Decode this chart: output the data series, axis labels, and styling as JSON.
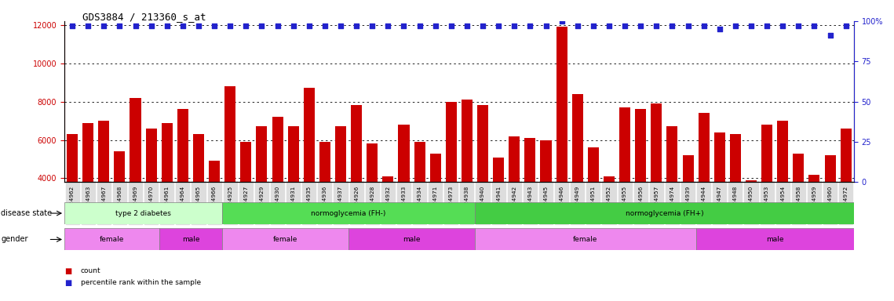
{
  "title": "GDS3884 / 213360_s_at",
  "samples": [
    "GSM624962",
    "GSM624963",
    "GSM624967",
    "GSM624968",
    "GSM624969",
    "GSM624970",
    "GSM624961",
    "GSM624964",
    "GSM624965",
    "GSM624966",
    "GSM624925",
    "GSM624927",
    "GSM624929",
    "GSM624930",
    "GSM624931",
    "GSM624935",
    "GSM624936",
    "GSM624937",
    "GSM624926",
    "GSM624928",
    "GSM624932",
    "GSM624933",
    "GSM624934",
    "GSM624971",
    "GSM624973",
    "GSM624938",
    "GSM624940",
    "GSM624941",
    "GSM624942",
    "GSM624943",
    "GSM624945",
    "GSM624946",
    "GSM624949",
    "GSM624951",
    "GSM624952",
    "GSM624955",
    "GSM624956",
    "GSM624957",
    "GSM624974",
    "GSM624939",
    "GSM624944",
    "GSM624947",
    "GSM624948",
    "GSM624950",
    "GSM624953",
    "GSM624954",
    "GSM624958",
    "GSM624959",
    "GSM624960",
    "GSM624972"
  ],
  "counts": [
    6300,
    6900,
    7000,
    5400,
    8200,
    6600,
    6900,
    7600,
    6300,
    4900,
    8800,
    5900,
    6700,
    7200,
    6700,
    8700,
    5900,
    6700,
    7800,
    5800,
    4100,
    6800,
    5900,
    5300,
    8000,
    8100,
    7800,
    5100,
    6200,
    6100,
    6000,
    11900,
    8400,
    5600,
    4100,
    7700,
    7600,
    7900,
    6700,
    5200,
    7400,
    6400,
    6300,
    3900,
    6800,
    7000,
    5300,
    4200,
    5200,
    6600
  ],
  "percentile_ranks": [
    97,
    97,
    97,
    97,
    97,
    97,
    97,
    97,
    97,
    97,
    97,
    97,
    97,
    97,
    97,
    97,
    97,
    97,
    97,
    97,
    97,
    97,
    97,
    97,
    97,
    97,
    97,
    97,
    97,
    97,
    97,
    100,
    97,
    97,
    97,
    97,
    97,
    97,
    97,
    97,
    97,
    95,
    97,
    97,
    97,
    97,
    97,
    97,
    91,
    97
  ],
  "bar_color": "#cc0000",
  "dot_color": "#2222cc",
  "ylim_left": [
    3800,
    12200
  ],
  "yticks_left": [
    4000,
    6000,
    8000,
    10000,
    12000
  ],
  "ylim_right": [
    0,
    100
  ],
  "yticks_right": [
    0,
    25,
    50,
    75,
    100
  ],
  "disease_state_groups": [
    {
      "label": "type 2 diabetes",
      "start": 0,
      "end": 10,
      "color": "#ccffcc"
    },
    {
      "label": "normoglycemia (FH-)",
      "start": 10,
      "end": 26,
      "color": "#55dd55"
    },
    {
      "label": "normoglycemia (FH+)",
      "start": 26,
      "end": 50,
      "color": "#44cc44"
    }
  ],
  "gender_groups": [
    {
      "label": "female",
      "start": 0,
      "end": 6,
      "color": "#ee88ee"
    },
    {
      "label": "male",
      "start": 6,
      "end": 10,
      "color": "#dd44dd"
    },
    {
      "label": "female",
      "start": 10,
      "end": 18,
      "color": "#ee88ee"
    },
    {
      "label": "male",
      "start": 18,
      "end": 26,
      "color": "#dd44dd"
    },
    {
      "label": "female",
      "start": 26,
      "end": 40,
      "color": "#ee88ee"
    },
    {
      "label": "male",
      "start": 40,
      "end": 50,
      "color": "#dd44dd"
    }
  ],
  "left_axis_color": "#cc0000",
  "right_axis_color": "#2222cc",
  "bg_color": "#ffffff",
  "disease_label": "disease state",
  "gender_label": "gender",
  "legend_count": "count",
  "legend_pct": "percentile rank within the sample"
}
